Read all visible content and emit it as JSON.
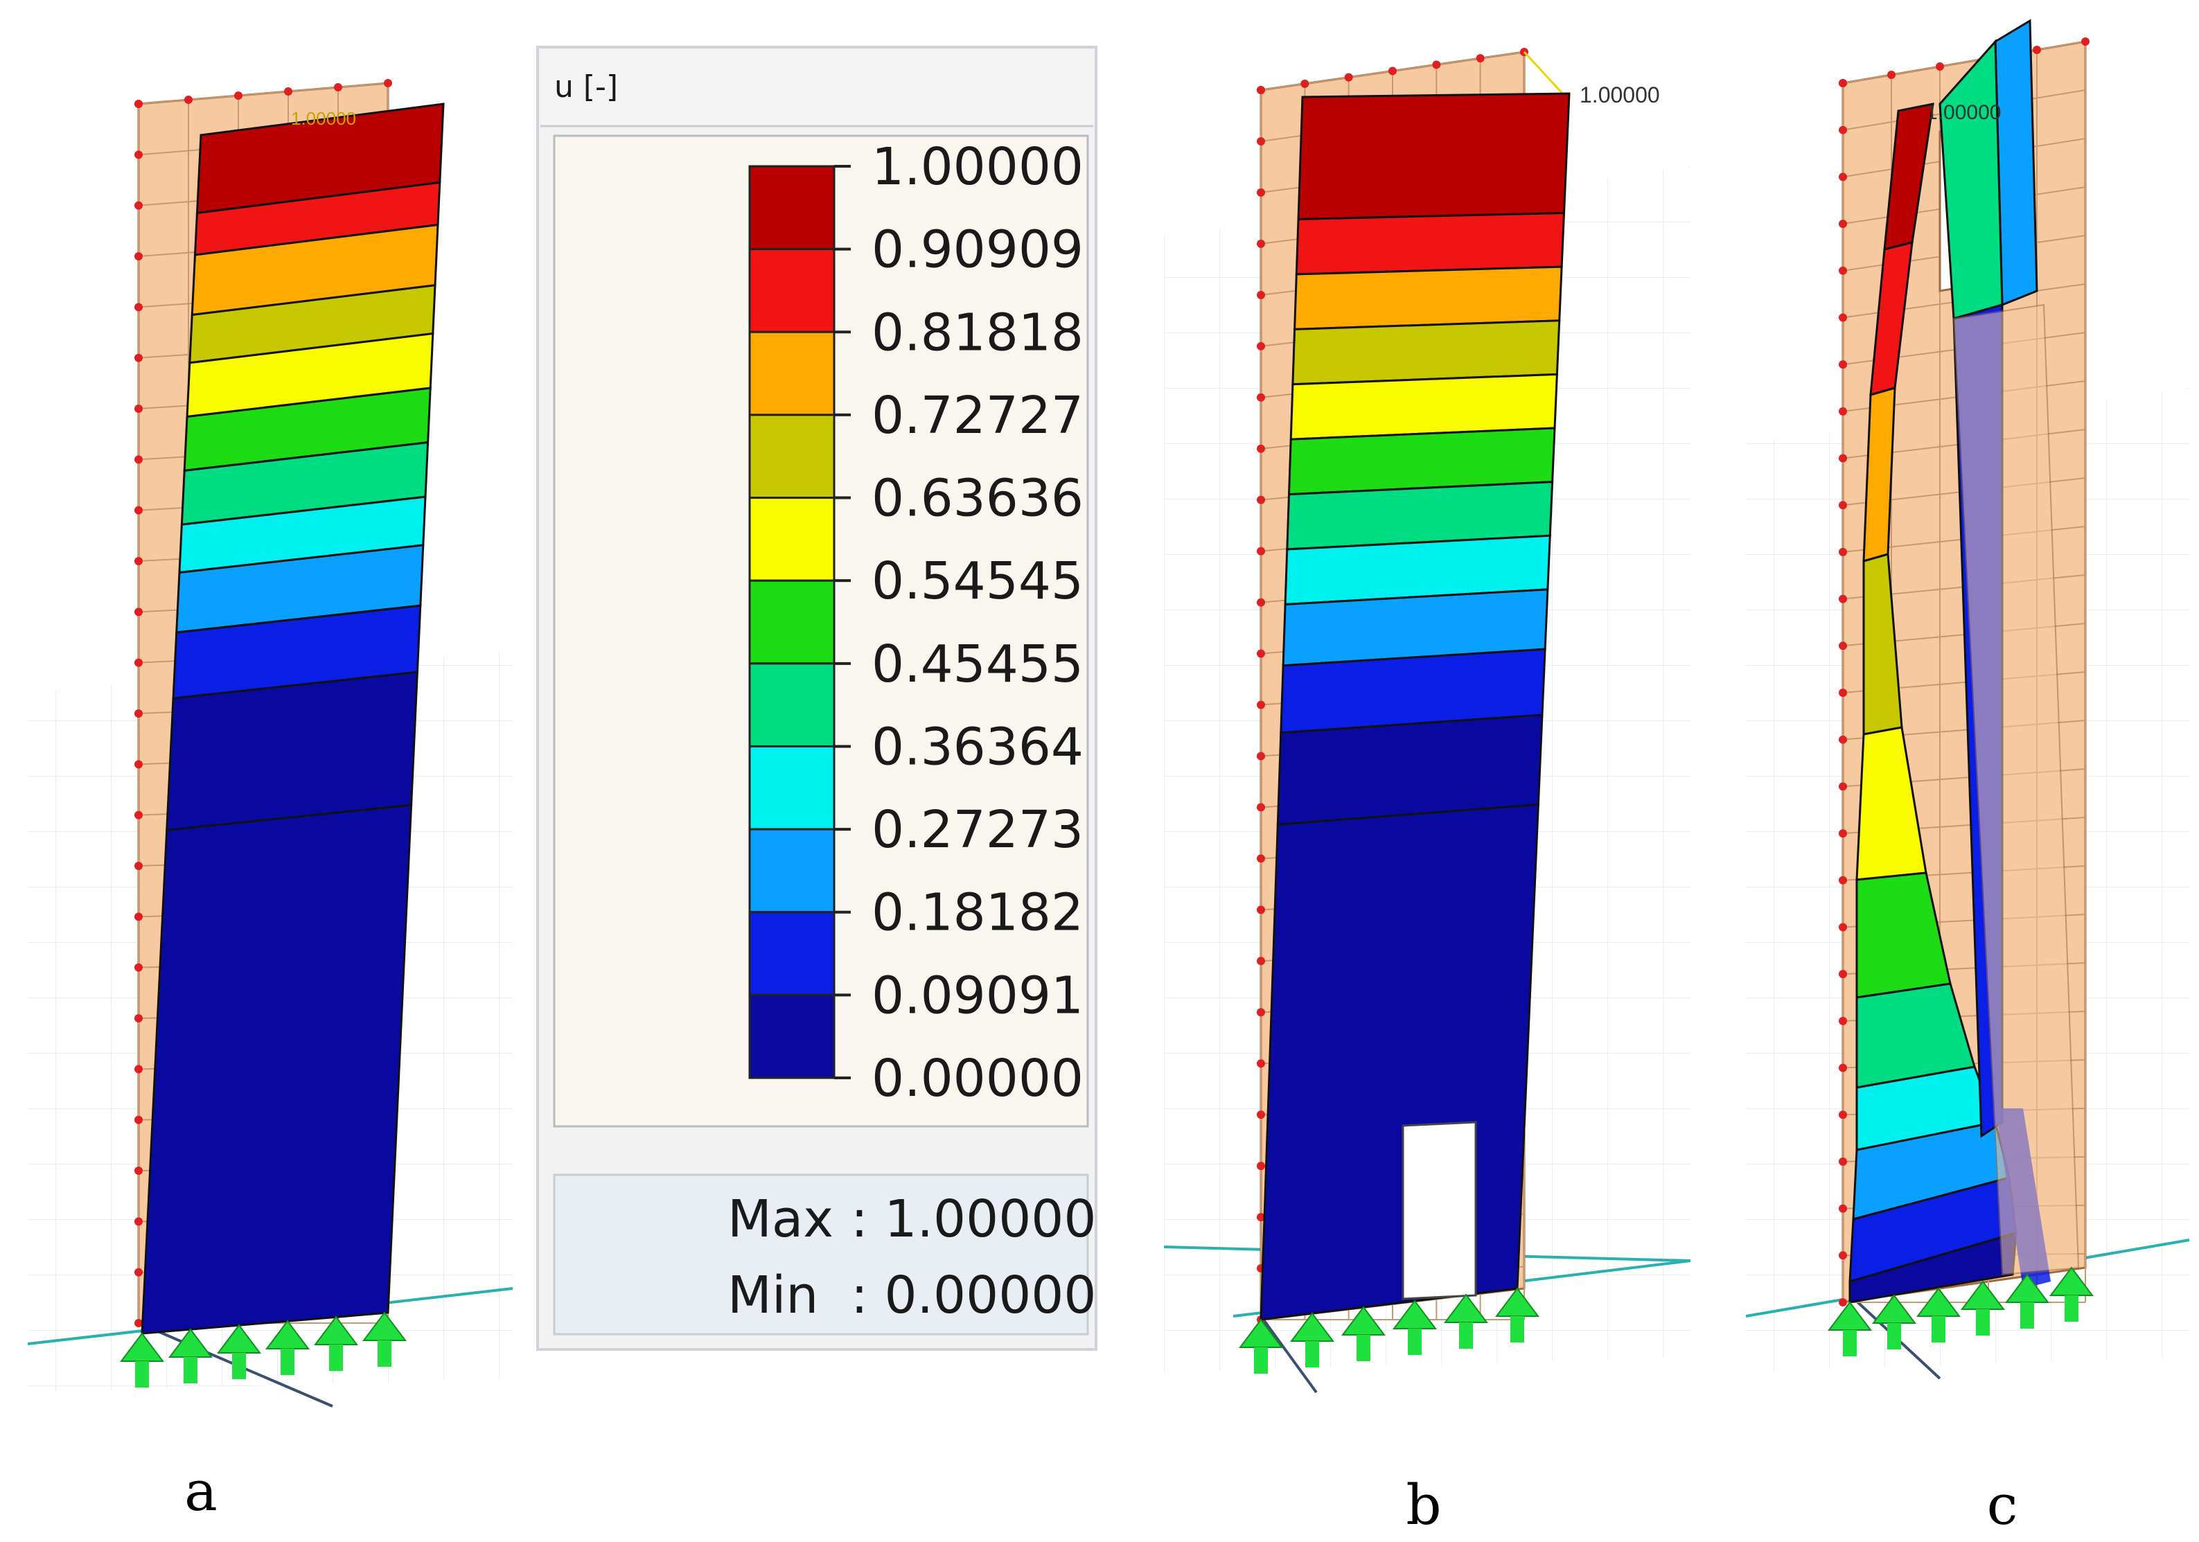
{
  "legend": {
    "quantity": "u [-]",
    "ticks": [
      "1.00000",
      "0.90909",
      "0.81818",
      "0.72727",
      "0.63636",
      "0.54545",
      "0.45455",
      "0.36364",
      "0.27273",
      "0.18182",
      "0.09091",
      "0.00000"
    ],
    "colors": [
      "#0a0aa0",
      "#0a1ee6",
      "#0aa0ff",
      "#00f0f0",
      "#00dc82",
      "#1edc14",
      "#fafa00",
      "#c8c800",
      "#ffaa00",
      "#f01414",
      "#b90000"
    ],
    "max_label": "Max",
    "max_value": ": 1.00000",
    "min_label": "Min",
    "min_value": ": 0.00000"
  },
  "panels": [
    {
      "caption": "a",
      "max_marker": "1.00000"
    },
    {
      "caption": "b",
      "max_marker": "1.00000"
    },
    {
      "caption": "c",
      "max_marker": "1.00000"
    }
  ]
}
